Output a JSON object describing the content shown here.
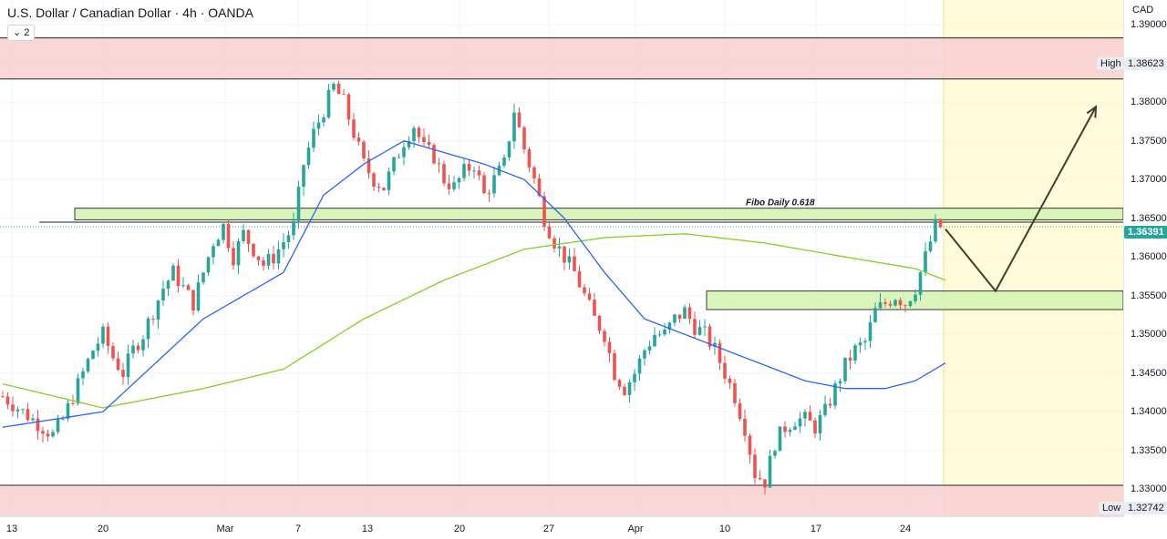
{
  "header": {
    "title": "U.S. Dollar / Canadian Dollar · 4h · OANDA",
    "indicator_count": "2"
  },
  "price_axis": {
    "currency": "CAD",
    "ticks": [
      "1.39000",
      "1.38500",
      "1.38000",
      "1.37500",
      "1.37000",
      "1.36500",
      "1.36000",
      "1.35500",
      "1.35000",
      "1.34500",
      "1.34000",
      "1.33500",
      "1.33000"
    ],
    "high_label": "High",
    "high_value": "1.38623",
    "current_value": "1.36391",
    "low_label": "Low",
    "low_value": "1.32742"
  },
  "time_axis": {
    "ticks": [
      "13",
      "20",
      "Mar",
      "7",
      "13",
      "20",
      "27",
      "Apr",
      "10",
      "17",
      "24"
    ]
  },
  "annotation": {
    "fibo_label": "Fibo Daily 0.618"
  },
  "colors": {
    "up": "#26a69a",
    "down": "#ef5350",
    "ma_fast": "#2962ff",
    "ma_slow": "#7ed321",
    "zone_red": "#f8cdd0",
    "zone_green": "#d5f5b5",
    "future_zone": "#fff7c2",
    "arrow": "#3b3f2e",
    "current_price_tag": "#26a69a"
  },
  "chart_data": {
    "type": "candlestick",
    "symbol": "USD/CAD",
    "timeframe": "4h",
    "ylim": [
      1.3265,
      1.3932
    ],
    "key_levels": {
      "resistance_zone": [
        1.383,
        1.3883
      ],
      "support_zone": [
        1.3265,
        1.3305
      ],
      "fibo_zone": [
        1.3648,
        1.3663
      ],
      "fibo_line": 1.3645,
      "demand_zone": [
        1.3532,
        1.3556
      ],
      "high": 1.38623,
      "low": 1.32742,
      "last": 1.36391
    },
    "close_path": [
      [
        0,
        1.342
      ],
      [
        4,
        1.34
      ],
      [
        8,
        1.338
      ],
      [
        10,
        1.337
      ],
      [
        12,
        1.339
      ],
      [
        14,
        1.342
      ],
      [
        16,
        1.345
      ],
      [
        18,
        1.348
      ],
      [
        20,
        1.35
      ],
      [
        22,
        1.347
      ],
      [
        24,
        1.345
      ],
      [
        26,
        1.348
      ],
      [
        28,
        1.35
      ],
      [
        30,
        1.353
      ],
      [
        32,
        1.356
      ],
      [
        34,
        1.358
      ],
      [
        36,
        1.356
      ],
      [
        38,
        1.354
      ],
      [
        40,
        1.358
      ],
      [
        42,
        1.362
      ],
      [
        44,
        1.364
      ],
      [
        46,
        1.36
      ],
      [
        48,
        1.363
      ],
      [
        50,
        1.361
      ],
      [
        52,
        1.359
      ],
      [
        54,
        1.36
      ],
      [
        56,
        1.362
      ],
      [
        58,
        1.364
      ],
      [
        60,
        1.372
      ],
      [
        62,
        1.376
      ],
      [
        64,
        1.379
      ],
      [
        66,
        1.382
      ],
      [
        68,
        1.38
      ],
      [
        70,
        1.376
      ],
      [
        72,
        1.372
      ],
      [
        74,
        1.37
      ],
      [
        76,
        1.369
      ],
      [
        78,
        1.372
      ],
      [
        80,
        1.375
      ],
      [
        82,
        1.377
      ],
      [
        84,
        1.374
      ],
      [
        86,
        1.373
      ],
      [
        88,
        1.37
      ],
      [
        90,
        1.369
      ],
      [
        92,
        1.371
      ],
      [
        94,
        1.372
      ],
      [
        96,
        1.368
      ],
      [
        98,
        1.37
      ],
      [
        100,
        1.372
      ],
      [
        102,
        1.379
      ],
      [
        104,
        1.374
      ],
      [
        106,
        1.37
      ],
      [
        108,
        1.365
      ],
      [
        110,
        1.362
      ],
      [
        112,
        1.36
      ],
      [
        114,
        1.358
      ],
      [
        116,
        1.355
      ],
      [
        118,
        1.352
      ],
      [
        120,
        1.35
      ],
      [
        122,
        1.345
      ],
      [
        124,
        1.343
      ],
      [
        126,
        1.345
      ],
      [
        128,
        1.348
      ],
      [
        130,
        1.35
      ],
      [
        132,
        1.35
      ],
      [
        134,
        1.352
      ],
      [
        136,
        1.353
      ],
      [
        138,
        1.351
      ],
      [
        140,
        1.35
      ],
      [
        142,
        1.348
      ],
      [
        144,
        1.345
      ],
      [
        146,
        1.342
      ],
      [
        148,
        1.338
      ],
      [
        150,
        1.332
      ],
      [
        152,
        1.331
      ],
      [
        154,
        1.336
      ],
      [
        156,
        1.338
      ],
      [
        158,
        1.339
      ],
      [
        160,
        1.339
      ],
      [
        162,
        1.338
      ],
      [
        164,
        1.34
      ],
      [
        166,
        1.343
      ],
      [
        168,
        1.346
      ],
      [
        170,
        1.348
      ],
      [
        172,
        1.349
      ],
      [
        174,
        1.353
      ],
      [
        176,
        1.354
      ],
      [
        178,
        1.355
      ],
      [
        180,
        1.354
      ],
      [
        182,
        1.356
      ],
      [
        184,
        1.36
      ],
      [
        186,
        1.364
      ],
      [
        187,
        1.3639
      ]
    ],
    "ma_fast": [
      [
        0,
        1.338
      ],
      [
        20,
        1.34
      ],
      [
        40,
        1.352
      ],
      [
        56,
        1.358
      ],
      [
        64,
        1.368
      ],
      [
        72,
        1.372
      ],
      [
        80,
        1.375
      ],
      [
        88,
        1.3735
      ],
      [
        96,
        1.372
      ],
      [
        104,
        1.37
      ],
      [
        112,
        1.365
      ],
      [
        120,
        1.358
      ],
      [
        128,
        1.352
      ],
      [
        136,
        1.35
      ],
      [
        144,
        1.348
      ],
      [
        152,
        1.346
      ],
      [
        160,
        1.344
      ],
      [
        168,
        1.343
      ],
      [
        176,
        1.343
      ],
      [
        182,
        1.344
      ],
      [
        188,
        1.3463
      ]
    ],
    "ma_slow": [
      [
        0,
        1.3436
      ],
      [
        20,
        1.3405
      ],
      [
        40,
        1.343
      ],
      [
        56,
        1.3455
      ],
      [
        72,
        1.352
      ],
      [
        88,
        1.357
      ],
      [
        104,
        1.361
      ],
      [
        120,
        1.3625
      ],
      [
        136,
        1.363
      ],
      [
        152,
        1.3618
      ],
      [
        168,
        1.36
      ],
      [
        182,
        1.3585
      ],
      [
        188,
        1.357
      ]
    ],
    "projection": [
      [
        188,
        1.3636
      ],
      [
        198,
        1.3556
      ],
      [
        218,
        1.3794
      ]
    ]
  }
}
